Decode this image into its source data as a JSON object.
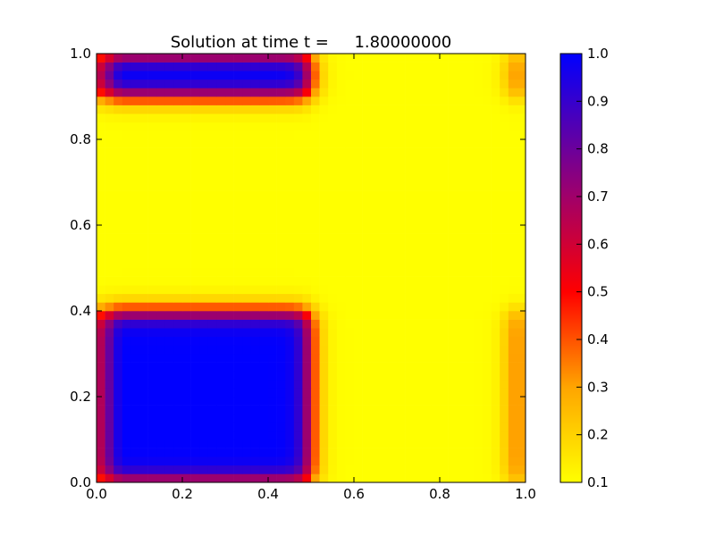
{
  "chart_data": {
    "type": "heatmap",
    "title": "Solution at time t =     1.80000000",
    "xlabel": "",
    "ylabel": "",
    "xlim": [
      0.0,
      1.0
    ],
    "ylim": [
      0.0,
      1.0
    ],
    "x_ticks": [
      "0.0",
      "0.2",
      "0.4",
      "0.6",
      "0.8",
      "1.0"
    ],
    "y_ticks": [
      "0.0",
      "0.2",
      "0.4",
      "0.6",
      "0.8",
      "1.0"
    ],
    "grid": false,
    "grid_cells": [
      50,
      50
    ],
    "colorbar": {
      "range": [
        0.1,
        1.0
      ],
      "ticks": [
        "0.1",
        "0.2",
        "0.3",
        "0.4",
        "0.5",
        "0.6",
        "0.7",
        "0.8",
        "0.9",
        "1.0"
      ],
      "colors": [
        {
          "value": 0.1,
          "color": "#ffff00"
        },
        {
          "value": 0.3,
          "color": "#ffa500"
        },
        {
          "value": 0.5,
          "color": "#ff0000"
        },
        {
          "value": 0.7,
          "color": "#a0006a"
        },
        {
          "value": 1.0,
          "color": "#0000ff"
        }
      ]
    },
    "regions": [
      {
        "name": "bottom-left block",
        "x_range": [
          0.0,
          0.5
        ],
        "y_range": [
          0.0,
          0.4
        ],
        "value": 1.0
      },
      {
        "name": "top-left block",
        "x_range": [
          0.0,
          0.5
        ],
        "y_range": [
          0.9,
          1.0
        ],
        "value": 1.0
      },
      {
        "name": "right edge strip",
        "x_range": [
          0.96,
          1.0
        ],
        "y_range": [
          0.0,
          0.4
        ],
        "value": 0.4
      },
      {
        "name": "right edge strip top",
        "x_range": [
          0.96,
          1.0
        ],
        "y_range": [
          0.9,
          1.0
        ],
        "value": 0.4
      }
    ],
    "background_value": 0.1
  }
}
